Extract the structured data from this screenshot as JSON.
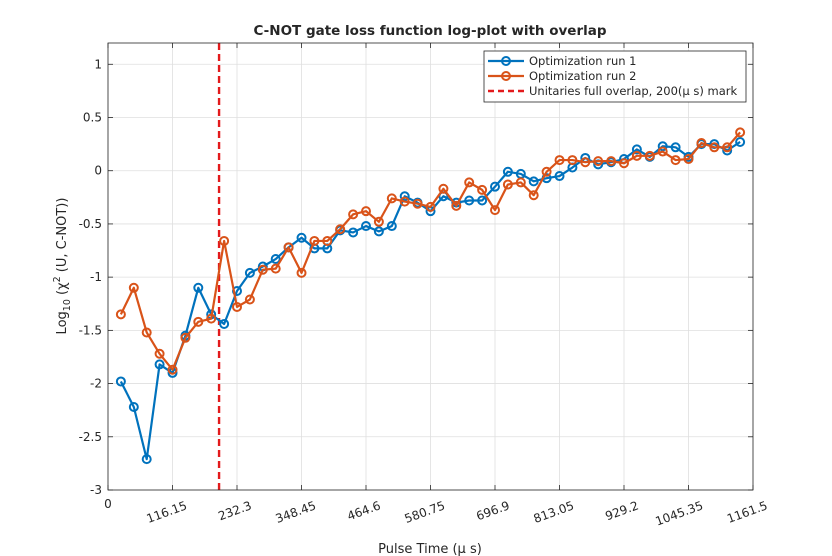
{
  "chart_data": {
    "type": "line",
    "title": "C-NOT gate loss function log-plot with overlap",
    "xlabel": "Pulse Time (μ s)",
    "ylabel_parts": {
      "base": "Log",
      "sub": "10",
      "mid": " (χ",
      "sup": "2",
      "end": " (U, C-NOT))"
    },
    "xlim": [
      0,
      1161.5
    ],
    "ylim": [
      -3,
      1.2
    ],
    "x_ticks": [
      0,
      116.15,
      232.3,
      348.45,
      464.6,
      580.75,
      696.9,
      813.05,
      929.2,
      1045.35,
      1161.5
    ],
    "x_tick_labels": [
      "0",
      "116.15",
      "232.3",
      "348.45",
      "464.6",
      "580.75",
      "696.9",
      "813.05",
      "929.2",
      "1045.35",
      "1161.5"
    ],
    "y_ticks": [
      -3,
      -2.5,
      -2,
      -1.5,
      -1,
      -0.5,
      0,
      0.5,
      1
    ],
    "y_tick_labels": [
      "-3",
      "-2.5",
      "-2",
      "-1.5",
      "-1",
      "-0.5",
      "0",
      "0.5",
      "1"
    ],
    "grid": true,
    "legend_position": "top-right",
    "x": [
      23.2,
      46.5,
      69.7,
      92.9,
      116.2,
      139.4,
      162.6,
      185.8,
      209.1,
      232.3,
      255.5,
      278.8,
      302.0,
      325.2,
      348.5,
      371.7,
      394.9,
      418.1,
      441.4,
      464.6,
      487.8,
      511.1,
      534.3,
      557.5,
      580.8,
      604.0,
      627.2,
      650.4,
      673.7,
      696.9,
      720.1,
      743.4,
      766.6,
      789.8,
      813.1,
      836.3,
      859.5,
      882.7,
      906.0,
      929.2,
      952.4,
      975.7,
      998.9,
      1022.1,
      1045.4,
      1068.6,
      1091.8,
      1115.0,
      1138.3,
      1161.5
    ],
    "series": [
      {
        "name": "Optimization run 1",
        "color": "#0072BD",
        "values": [
          -1.98,
          -2.22,
          -2.71,
          -1.82,
          -1.9,
          -1.55,
          -1.1,
          -1.35,
          -1.44,
          -1.13,
          -0.96,
          -0.9,
          -0.83,
          -0.72,
          -0.63,
          -0.73,
          -0.73,
          -0.56,
          -0.58,
          -0.52,
          -0.57,
          -0.52,
          -0.24,
          -0.3,
          -0.38,
          -0.24,
          -0.3,
          -0.28,
          -0.28,
          -0.15,
          -0.01,
          -0.03,
          -0.1,
          -0.07,
          -0.05,
          0.03,
          0.12,
          0.06,
          0.08,
          0.11,
          0.2,
          0.13,
          0.23,
          0.22,
          0.13,
          0.25,
          0.25,
          0.19,
          0.27,
          null
        ]
      },
      {
        "name": "Optimization run 2",
        "color": "#D95319",
        "values": [
          -1.35,
          -1.1,
          -1.52,
          -1.72,
          -1.87,
          -1.57,
          -1.42,
          -1.39,
          -0.66,
          -1.28,
          -1.21,
          -0.93,
          -0.92,
          -0.72,
          -0.96,
          -0.66,
          -0.66,
          -0.55,
          -0.41,
          -0.38,
          -0.48,
          -0.26,
          -0.29,
          -0.31,
          -0.34,
          -0.17,
          -0.33,
          -0.11,
          -0.18,
          -0.37,
          -0.13,
          -0.11,
          -0.23,
          -0.01,
          0.1,
          0.1,
          0.08,
          0.09,
          0.09,
          0.07,
          0.14,
          0.14,
          0.18,
          0.1,
          0.11,
          0.26,
          0.22,
          0.22,
          0.36,
          null
        ]
      }
    ],
    "reference_line": {
      "name": "Unitaries full overlap, 200(μ s) mark",
      "color": "#E31A1C",
      "x": 200
    }
  }
}
